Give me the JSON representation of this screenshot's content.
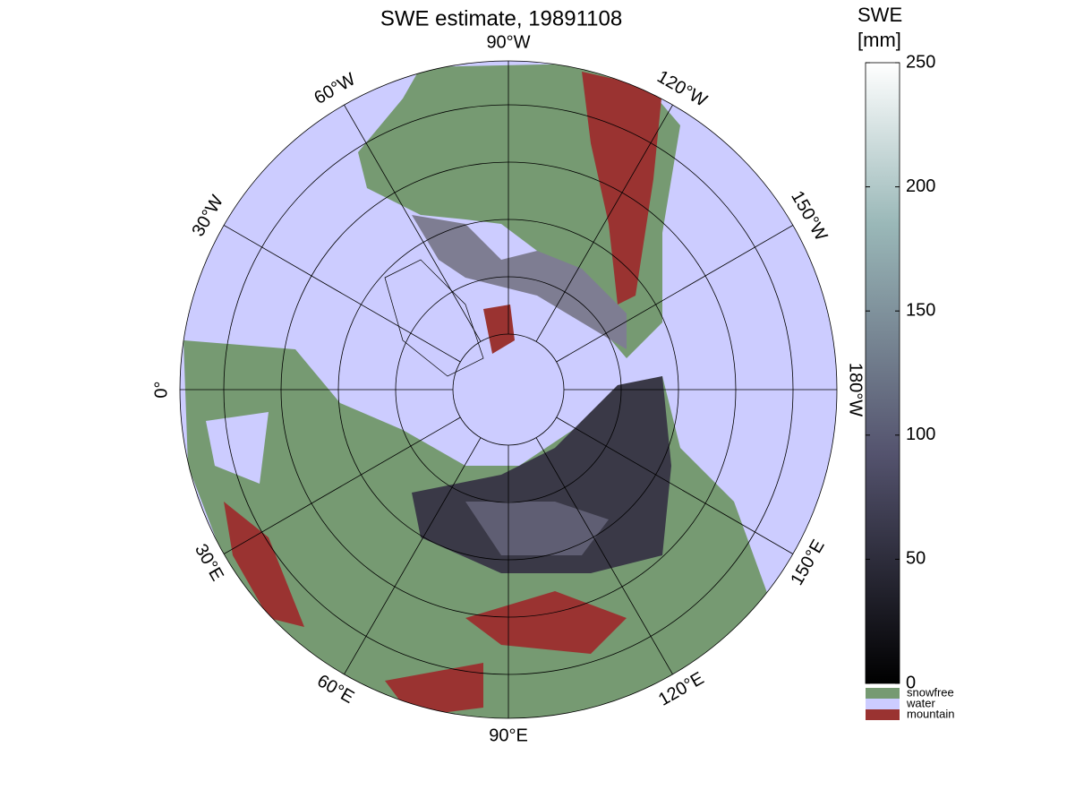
{
  "title": "SWE estimate, 19891108",
  "longitude_labels": [
    "90°W",
    "120°W",
    "150°W",
    "180°W",
    "150°E",
    "120°E",
    "90°E",
    "60°E",
    "30°E",
    "0°",
    "30°W",
    "60°W"
  ],
  "colorbar": {
    "label": [
      "SWE",
      "[mm]"
    ],
    "lim": [
      0,
      250
    ],
    "ticks": [
      0,
      50,
      100,
      150,
      200,
      250
    ]
  },
  "legend": [
    {
      "name": "snowfree",
      "color": "#769a72"
    },
    {
      "name": "water",
      "color": "#ccccff"
    },
    {
      "name": "mountain",
      "color": "#9a3331"
    }
  ]
}
